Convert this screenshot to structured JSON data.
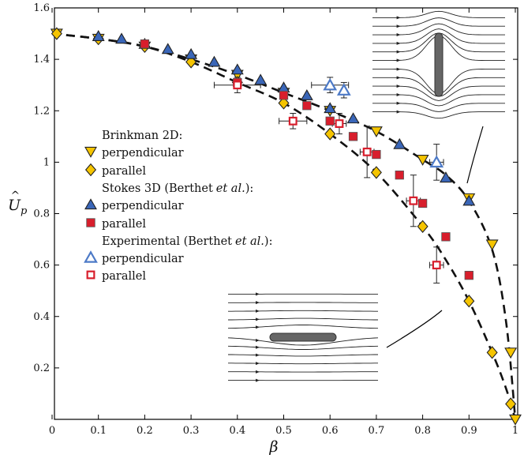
{
  "chart_data": {
    "type": "scatter",
    "xlabel": "β",
    "ylabel": "Ûp",
    "xlim": [
      0,
      1
    ],
    "ylim": [
      0,
      1.6
    ],
    "xticks": [
      "0",
      "0.1",
      "0.2",
      "0.3",
      "0.4",
      "0.5",
      "0.6",
      "0.7",
      "0.8",
      "0.9",
      "1"
    ],
    "yticks": [
      "0.2",
      "0.4",
      "0.6",
      "0.8",
      "1",
      "1.2",
      "1.4",
      "1.6"
    ],
    "legend": {
      "group_brinkman": "Brinkman 2D:",
      "group_stokes": "Stokes 3D (Berthet",
      "group_experimental": "Experimental (Berthet",
      "et_al": "et al.",
      "closing": "):",
      "perpendicular": "perpendicular",
      "parallel": "parallel"
    },
    "series": [
      {
        "name": "perpendicular",
        "group": "Brinkman 2D:",
        "marker": "triangle-down",
        "color": "#f5c400",
        "x": [
          0.01,
          0.1,
          0.2,
          0.3,
          0.4,
          0.5,
          0.6,
          0.7,
          0.8,
          0.9,
          0.95,
          0.99,
          1.0
        ],
        "y": [
          1.5,
          1.48,
          1.45,
          1.4,
          1.34,
          1.27,
          1.2,
          1.12,
          1.01,
          0.86,
          0.68,
          0.26,
          0.0
        ]
      },
      {
        "name": "parallel",
        "group": "Brinkman 2D:",
        "marker": "diamond",
        "color": "#f5c400",
        "x": [
          0.01,
          0.1,
          0.2,
          0.3,
          0.4,
          0.5,
          0.6,
          0.7,
          0.8,
          0.9,
          0.95,
          0.99
        ],
        "y": [
          1.5,
          1.48,
          1.45,
          1.39,
          1.31,
          1.23,
          1.11,
          0.96,
          0.75,
          0.46,
          0.26,
          0.06
        ]
      },
      {
        "name": "perpendicular",
        "group": "Stokes 3D (Berthet et al.):",
        "marker": "triangle-up",
        "color": "#3a66b8",
        "x": [
          0.1,
          0.15,
          0.2,
          0.25,
          0.3,
          0.35,
          0.4,
          0.45,
          0.5,
          0.55,
          0.6,
          0.65,
          0.75,
          0.85,
          0.9
        ],
        "y": [
          1.49,
          1.48,
          1.46,
          1.44,
          1.42,
          1.39,
          1.36,
          1.32,
          1.29,
          1.26,
          1.21,
          1.17,
          1.07,
          0.94,
          0.85
        ]
      },
      {
        "name": "parallel",
        "group": "Stokes 3D (Berthet et al.):",
        "marker": "square",
        "color": "#d81e2c",
        "x": [
          0.2,
          0.4,
          0.5,
          0.55,
          0.6,
          0.65,
          0.7,
          0.75,
          0.8,
          0.85,
          0.9
        ],
        "y": [
          1.46,
          1.31,
          1.26,
          1.22,
          1.16,
          1.1,
          1.03,
          0.95,
          0.84,
          0.71,
          0.56
        ]
      },
      {
        "name": "perpendicular",
        "group": "Experimental (Berthet et al.):",
        "marker": "triangle-up-open",
        "color": "#4d7ac7",
        "x": [
          0.6,
          0.63,
          0.83
        ],
        "y": [
          1.3,
          1.28,
          1.0
        ],
        "xerr": [
          0.04,
          0,
          0.015
        ],
        "yerr": [
          0.03,
          0.03,
          0.07
        ]
      },
      {
        "name": "parallel",
        "group": "Experimental (Berthet et al.):",
        "marker": "square-open",
        "color": "#d81e2c",
        "x": [
          0.4,
          0.52,
          0.62,
          0.68,
          0.78,
          0.83
        ],
        "y": [
          1.3,
          1.16,
          1.15,
          1.04,
          0.85,
          0.6
        ],
        "xerr": [
          0.05,
          0.03,
          0.015,
          0.015,
          0.015,
          0.015
        ],
        "yerr": [
          0.03,
          0.03,
          0.04,
          0.1,
          0.1,
          0.07
        ]
      }
    ],
    "fit_lines": [
      {
        "for": "perpendicular",
        "style": "dashed",
        "x": [
          0.0,
          0.1,
          0.2,
          0.3,
          0.4,
          0.5,
          0.6,
          0.7,
          0.8,
          0.85,
          0.9,
          0.95,
          0.98,
          1.0
        ],
        "y": [
          1.5,
          1.48,
          1.45,
          1.4,
          1.34,
          1.27,
          1.2,
          1.12,
          1.01,
          0.95,
          0.85,
          0.66,
          0.38,
          0.0
        ]
      },
      {
        "for": "parallel",
        "style": "dashed",
        "x": [
          0.0,
          0.1,
          0.2,
          0.3,
          0.4,
          0.5,
          0.6,
          0.7,
          0.8,
          0.85,
          0.9,
          0.95,
          0.98,
          1.0
        ],
        "y": [
          1.5,
          1.48,
          1.45,
          1.39,
          1.31,
          1.23,
          1.11,
          0.96,
          0.75,
          0.62,
          0.46,
          0.26,
          0.12,
          0.0
        ]
      }
    ]
  }
}
